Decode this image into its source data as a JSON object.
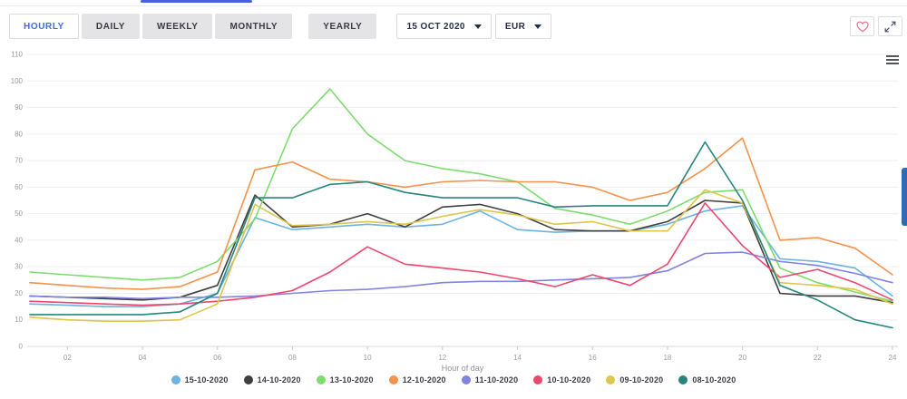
{
  "toolbar": {
    "tabs": [
      {
        "label": "HOURLY",
        "active": true
      },
      {
        "label": "DAILY",
        "active": false
      },
      {
        "label": "WEEKLY",
        "active": false
      },
      {
        "label": "MONTHLY",
        "active": false
      },
      {
        "label": "YEARLY",
        "active": false
      }
    ],
    "date_selector": {
      "value": "15 OCT 2020",
      "icon": "caret-down-icon"
    },
    "currency_selector": {
      "value": "EUR",
      "icon": "caret-down-icon"
    },
    "favorite_icon": "heart-outline-icon",
    "fullscreen_icon": "expand-arrows-icon"
  },
  "chart_menu_icon": "hamburger-menu-icon",
  "scrollbar_color": "#2b6cb3",
  "accent_color": "#4762e0",
  "chart_data": {
    "type": "line",
    "title": "",
    "xlabel": "Hour of day",
    "ylabel": "",
    "ylim": [
      0,
      110
    ],
    "y_ticks": [
      0,
      10,
      20,
      30,
      40,
      50,
      60,
      70,
      80,
      90,
      100,
      110
    ],
    "x": [
      1,
      2,
      3,
      4,
      5,
      6,
      7,
      8,
      9,
      10,
      11,
      12,
      13,
      14,
      15,
      16,
      17,
      18,
      19,
      20,
      21,
      22,
      23,
      24
    ],
    "x_tick_labels": [
      "02",
      "04",
      "06",
      "08",
      "10",
      "12",
      "14",
      "16",
      "18",
      "20",
      "22",
      "24"
    ],
    "grid": true,
    "legend_position": "bottom",
    "series": [
      {
        "name": "15-10-2020",
        "color": "#6cb2e2",
        "values": [
          16,
          15.5,
          15,
          15,
          16,
          20,
          48.5,
          44,
          45,
          46,
          45,
          46,
          51,
          44,
          43,
          43.5,
          43.5,
          46,
          51,
          53,
          33,
          32,
          29.5,
          19
        ]
      },
      {
        "name": "14-10-2020",
        "color": "#3f3f3f",
        "values": [
          19,
          18.5,
          18,
          17.5,
          18.5,
          23,
          57,
          45,
          46,
          50,
          45,
          52.5,
          53.5,
          50,
          44,
          43.5,
          43.5,
          47,
          55,
          54,
          20,
          19,
          19,
          16.5
        ]
      },
      {
        "name": "13-10-2020",
        "color": "#7ddc6e",
        "values": [
          28,
          27,
          26,
          25,
          26,
          32,
          48,
          82,
          97,
          80,
          70,
          67,
          65,
          62,
          52,
          49.5,
          46,
          51,
          58,
          59,
          29.5,
          24,
          20.5,
          17
        ]
      },
      {
        "name": "12-10-2020",
        "color": "#f5924c",
        "values": [
          24,
          23,
          22,
          21.5,
          22.5,
          28,
          66.5,
          69.5,
          63,
          62,
          60,
          62,
          62.5,
          62,
          62,
          60,
          55,
          58,
          67,
          78.5,
          40,
          41,
          37,
          27
        ]
      },
      {
        "name": "11-10-2020",
        "color": "#8084e2",
        "values": [
          19,
          18.5,
          18.5,
          18,
          18.5,
          18.5,
          19,
          20,
          21,
          21.5,
          22.5,
          24,
          24.5,
          24.5,
          25,
          25.5,
          26,
          28.5,
          35,
          35.5,
          32,
          30.5,
          27.5,
          24
        ]
      },
      {
        "name": "10-10-2020",
        "color": "#ee476f",
        "values": [
          17,
          16.5,
          16,
          15.5,
          16,
          17,
          18.5,
          21,
          28,
          37.5,
          31,
          29.5,
          28,
          25.5,
          22.5,
          27,
          23,
          31,
          54,
          38,
          26,
          29,
          24,
          17.5
        ]
      },
      {
        "name": "09-10-2020",
        "color": "#ddc64a",
        "values": [
          11,
          10,
          9.5,
          9.5,
          10,
          16,
          53.5,
          45.5,
          46,
          47,
          46,
          49,
          51.5,
          49.5,
          46,
          47,
          43.5,
          43.5,
          59,
          54,
          24,
          23,
          21.5,
          16
        ]
      },
      {
        "name": "08-10-2020",
        "color": "#28857e",
        "values": [
          12,
          12,
          12,
          12,
          13,
          20,
          56,
          56,
          61,
          62,
          58,
          56,
          56,
          56,
          52.5,
          53,
          53,
          53,
          77,
          55,
          23,
          17.5,
          10,
          7
        ]
      }
    ]
  }
}
